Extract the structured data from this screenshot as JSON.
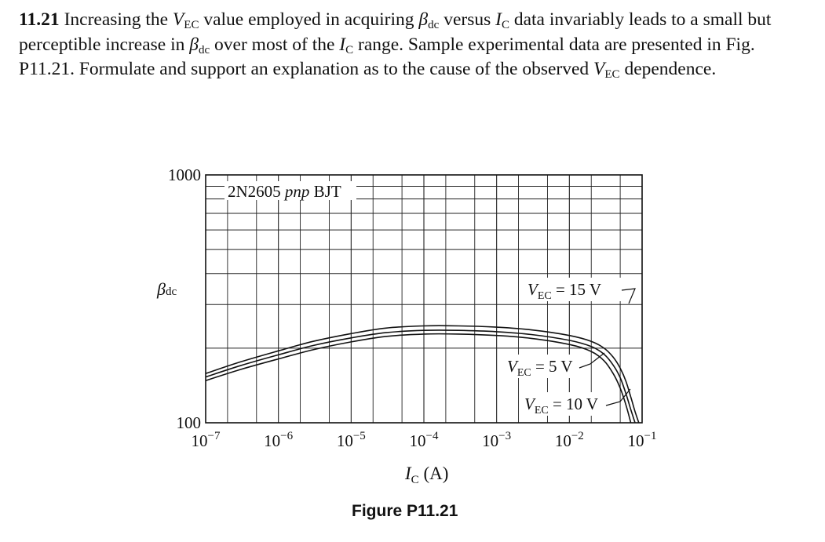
{
  "problem": {
    "number": "11.21",
    "segments": [
      {
        "t": "Increasing the "
      },
      {
        "v": "V",
        "s": "EC"
      },
      {
        "t": " value employed in acquiring "
      },
      {
        "v": "β",
        "s": "dc"
      },
      {
        "t": " versus "
      },
      {
        "v": "I",
        "s": "C"
      },
      {
        "t": " data invariably leads to a small but perceptible increase in "
      },
      {
        "v": "β",
        "s": "dc"
      },
      {
        "t": " over most of the "
      },
      {
        "v": "I",
        "s": "C"
      },
      {
        "t": " range. Sample experimental data are presented in Fig. P11.21. Formulate and support an explanation as to the cause of the observed "
      },
      {
        "v": "V",
        "s": "EC"
      },
      {
        "t": " dependence."
      }
    ]
  },
  "figure": {
    "caption": "Figure P11.21",
    "device_prefix": "2N2605 ",
    "device_type": "pnp",
    "device_suffix": " BJT",
    "y_label_symbol": "β",
    "y_label_sub": "dc",
    "x_label_symbol": "I",
    "x_label_sub": "C",
    "x_label_unit": " (A)",
    "y_tick_labels": [
      "1000",
      "100"
    ]
  },
  "chart_data": {
    "type": "line",
    "x_scale": "log",
    "y_scale": "log",
    "xlim": [
      1e-07,
      0.1
    ],
    "ylim": [
      100,
      1000
    ],
    "grid": true,
    "x_ticks": [
      {
        "base": "10",
        "exp": "−7"
      },
      {
        "base": "10",
        "exp": "−6"
      },
      {
        "base": "10",
        "exp": "−5"
      },
      {
        "base": "10",
        "exp": "−4"
      },
      {
        "base": "10",
        "exp": "−3"
      },
      {
        "base": "10",
        "exp": "−2"
      },
      {
        "base": "10",
        "exp": "−1"
      }
    ],
    "y_ticks": [
      100,
      1000
    ],
    "series": [
      {
        "label_var": "V",
        "label_sub": "EC",
        "label_val": " = 5 V",
        "x": [
          1e-07,
          3e-07,
          1e-06,
          3e-06,
          1e-05,
          3e-05,
          0.0001,
          0.0003,
          0.001,
          0.003,
          0.01,
          0.02,
          0.03,
          0.04,
          0.05,
          0.06,
          0.07
        ],
        "y": [
          148,
          164,
          181,
          197,
          212,
          223,
          228,
          228,
          225,
          219,
          207,
          194,
          178,
          158,
          138,
          118,
          100
        ]
      },
      {
        "label_var": "V",
        "label_sub": "EC",
        "label_val": " = 10 V",
        "x": [
          1e-07,
          3e-07,
          1e-06,
          3e-06,
          1e-05,
          3e-05,
          0.0001,
          0.0003,
          0.001,
          0.003,
          0.01,
          0.02,
          0.03,
          0.04,
          0.05,
          0.06,
          0.07,
          0.08
        ],
        "y": [
          153,
          170,
          188,
          205,
          220,
          231,
          236,
          236,
          233,
          227,
          215,
          203,
          189,
          171,
          152,
          131,
          113,
          100
        ]
      },
      {
        "label_var": "V",
        "label_sub": "EC",
        "label_val": " = 15 V",
        "x": [
          1e-07,
          3e-07,
          1e-06,
          3e-06,
          1e-05,
          3e-05,
          0.0001,
          0.0003,
          0.001,
          0.003,
          0.01,
          0.02,
          0.03,
          0.04,
          0.05,
          0.06,
          0.07,
          0.08,
          0.09
        ],
        "y": [
          158,
          176,
          195,
          213,
          229,
          241,
          246,
          246,
          243,
          237,
          225,
          213,
          200,
          184,
          166,
          147,
          127,
          111,
          100
        ]
      }
    ]
  }
}
